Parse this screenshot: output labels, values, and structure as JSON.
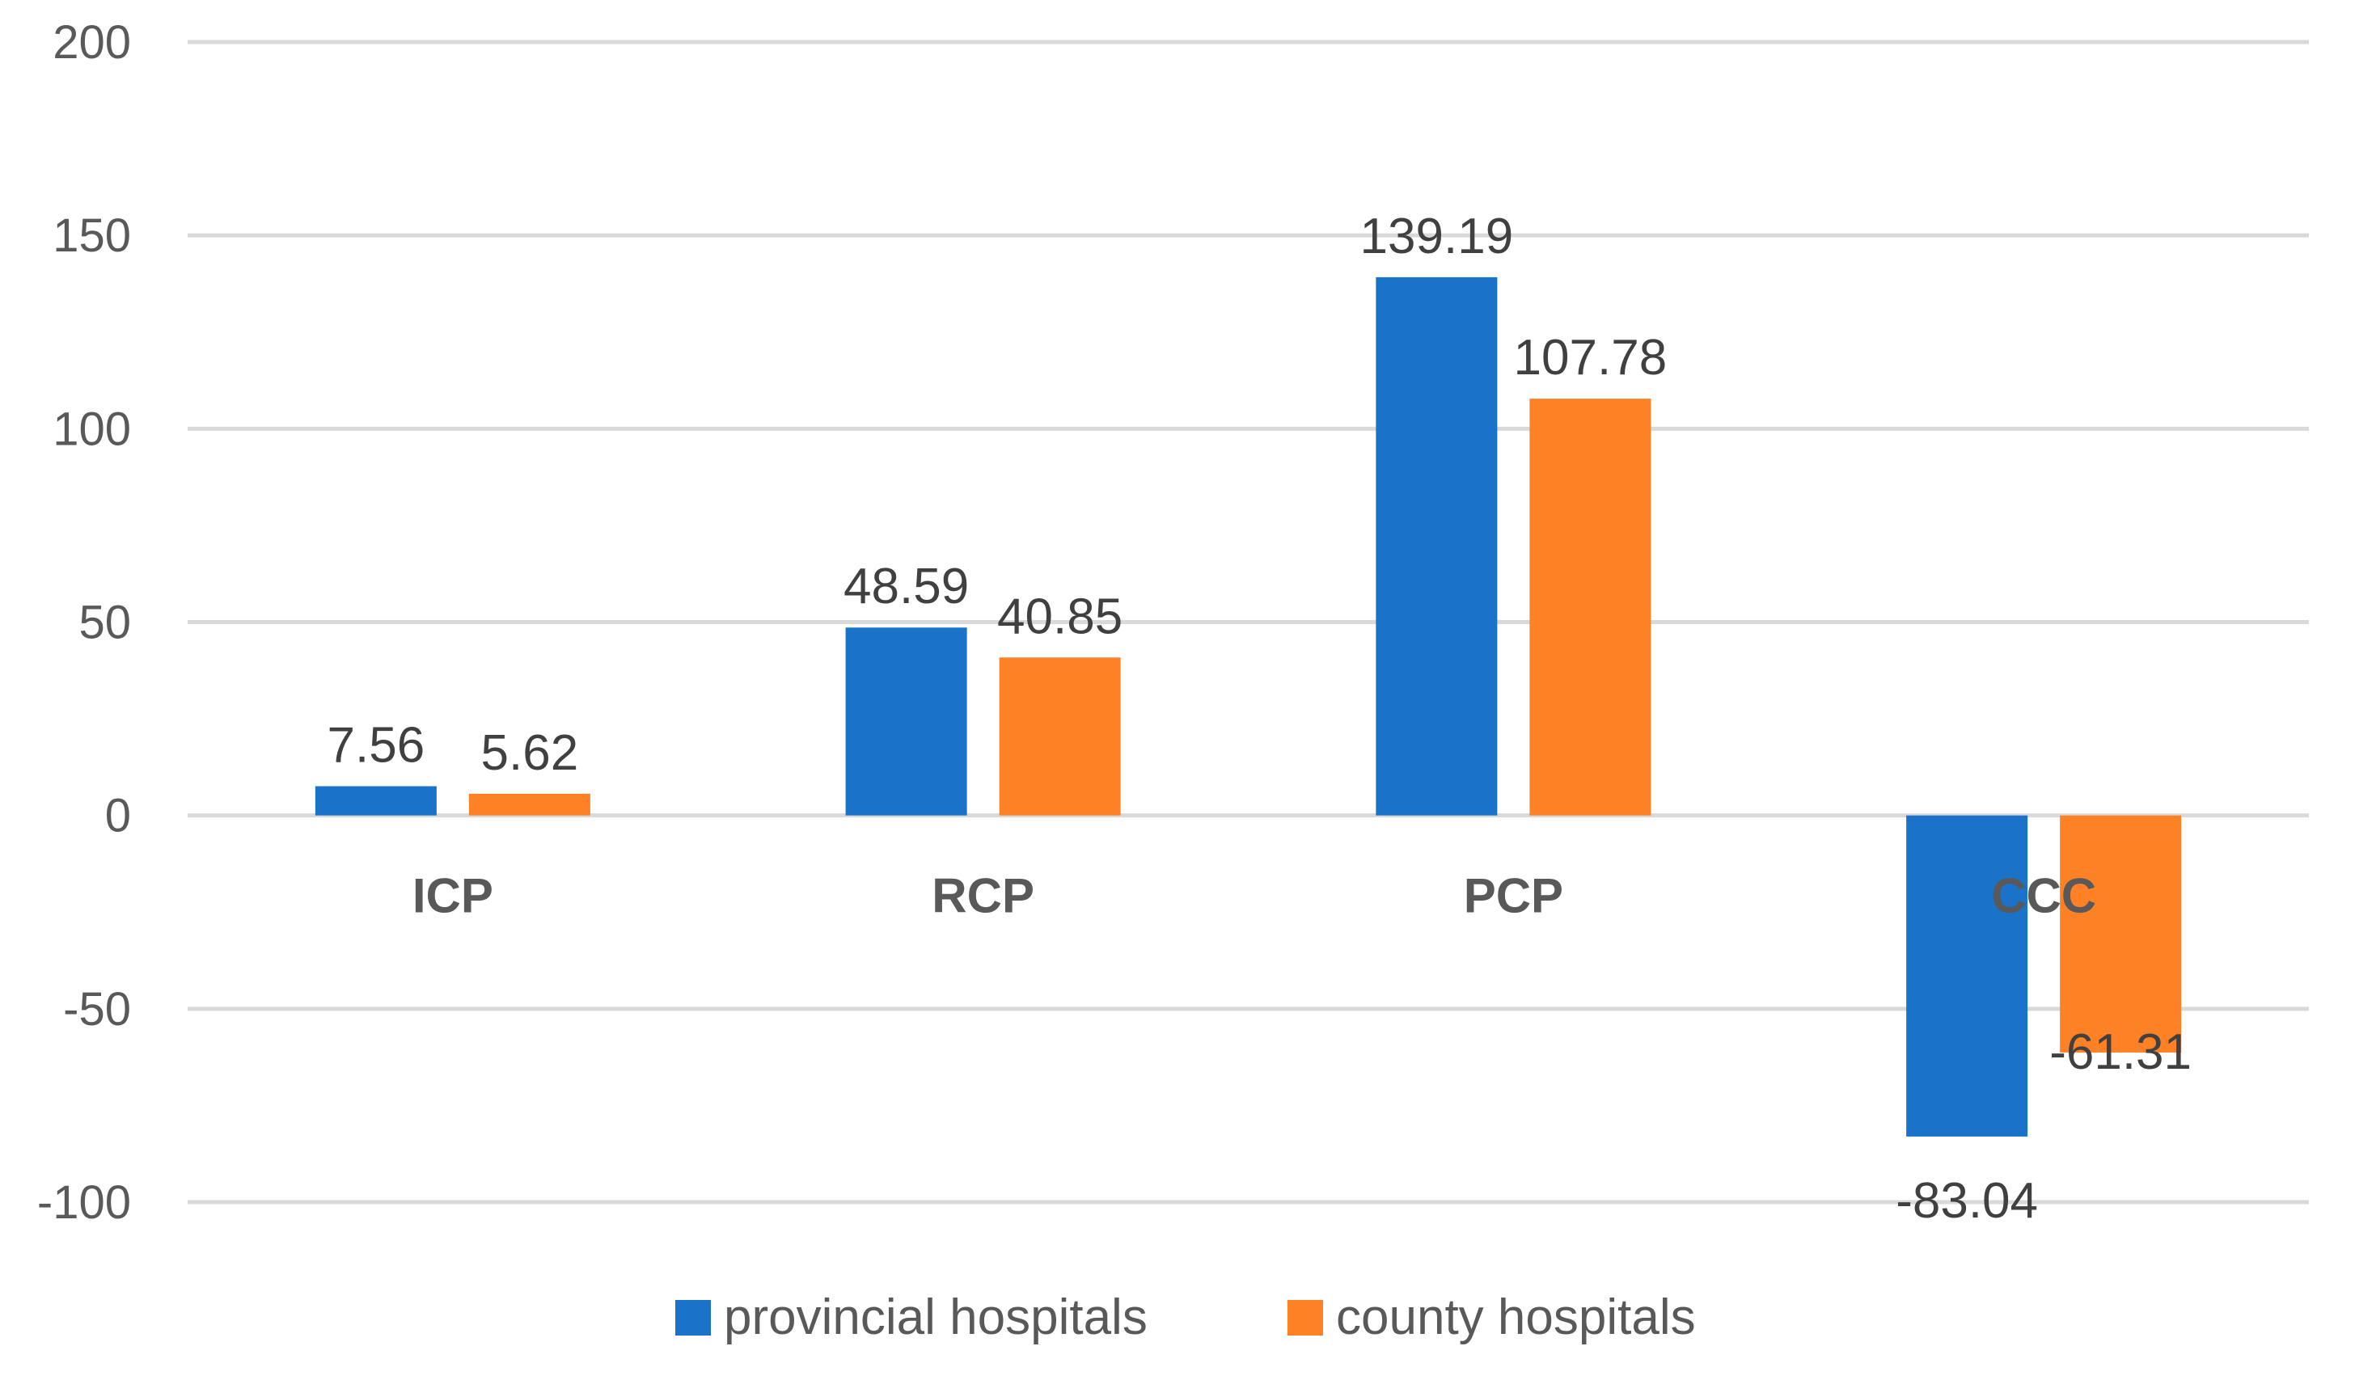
{
  "chart_data": {
    "type": "bar",
    "title": "",
    "xlabel": "",
    "ylabel": "",
    "ylim": [
      -100,
      200
    ],
    "yticks": [
      200,
      150,
      100,
      50,
      0,
      -50,
      -100
    ],
    "grid": true,
    "legend_position": "bottom",
    "categories": [
      "ICP",
      "RCP",
      "PCP",
      "CCC"
    ],
    "series": [
      {
        "name": "provincial hospitals",
        "color": "#1a73c9",
        "values": [
          7.56,
          48.59,
          139.19,
          -83.04
        ],
        "labels": [
          "7.56",
          "48.59",
          "139.19",
          "-83.04"
        ]
      },
      {
        "name": "county hospitals",
        "color": "#ff8126",
        "values": [
          5.62,
          40.85,
          107.78,
          -61.31
        ],
        "labels": [
          "5.62",
          "40.85",
          "107.78",
          "-61.31"
        ]
      }
    ]
  }
}
